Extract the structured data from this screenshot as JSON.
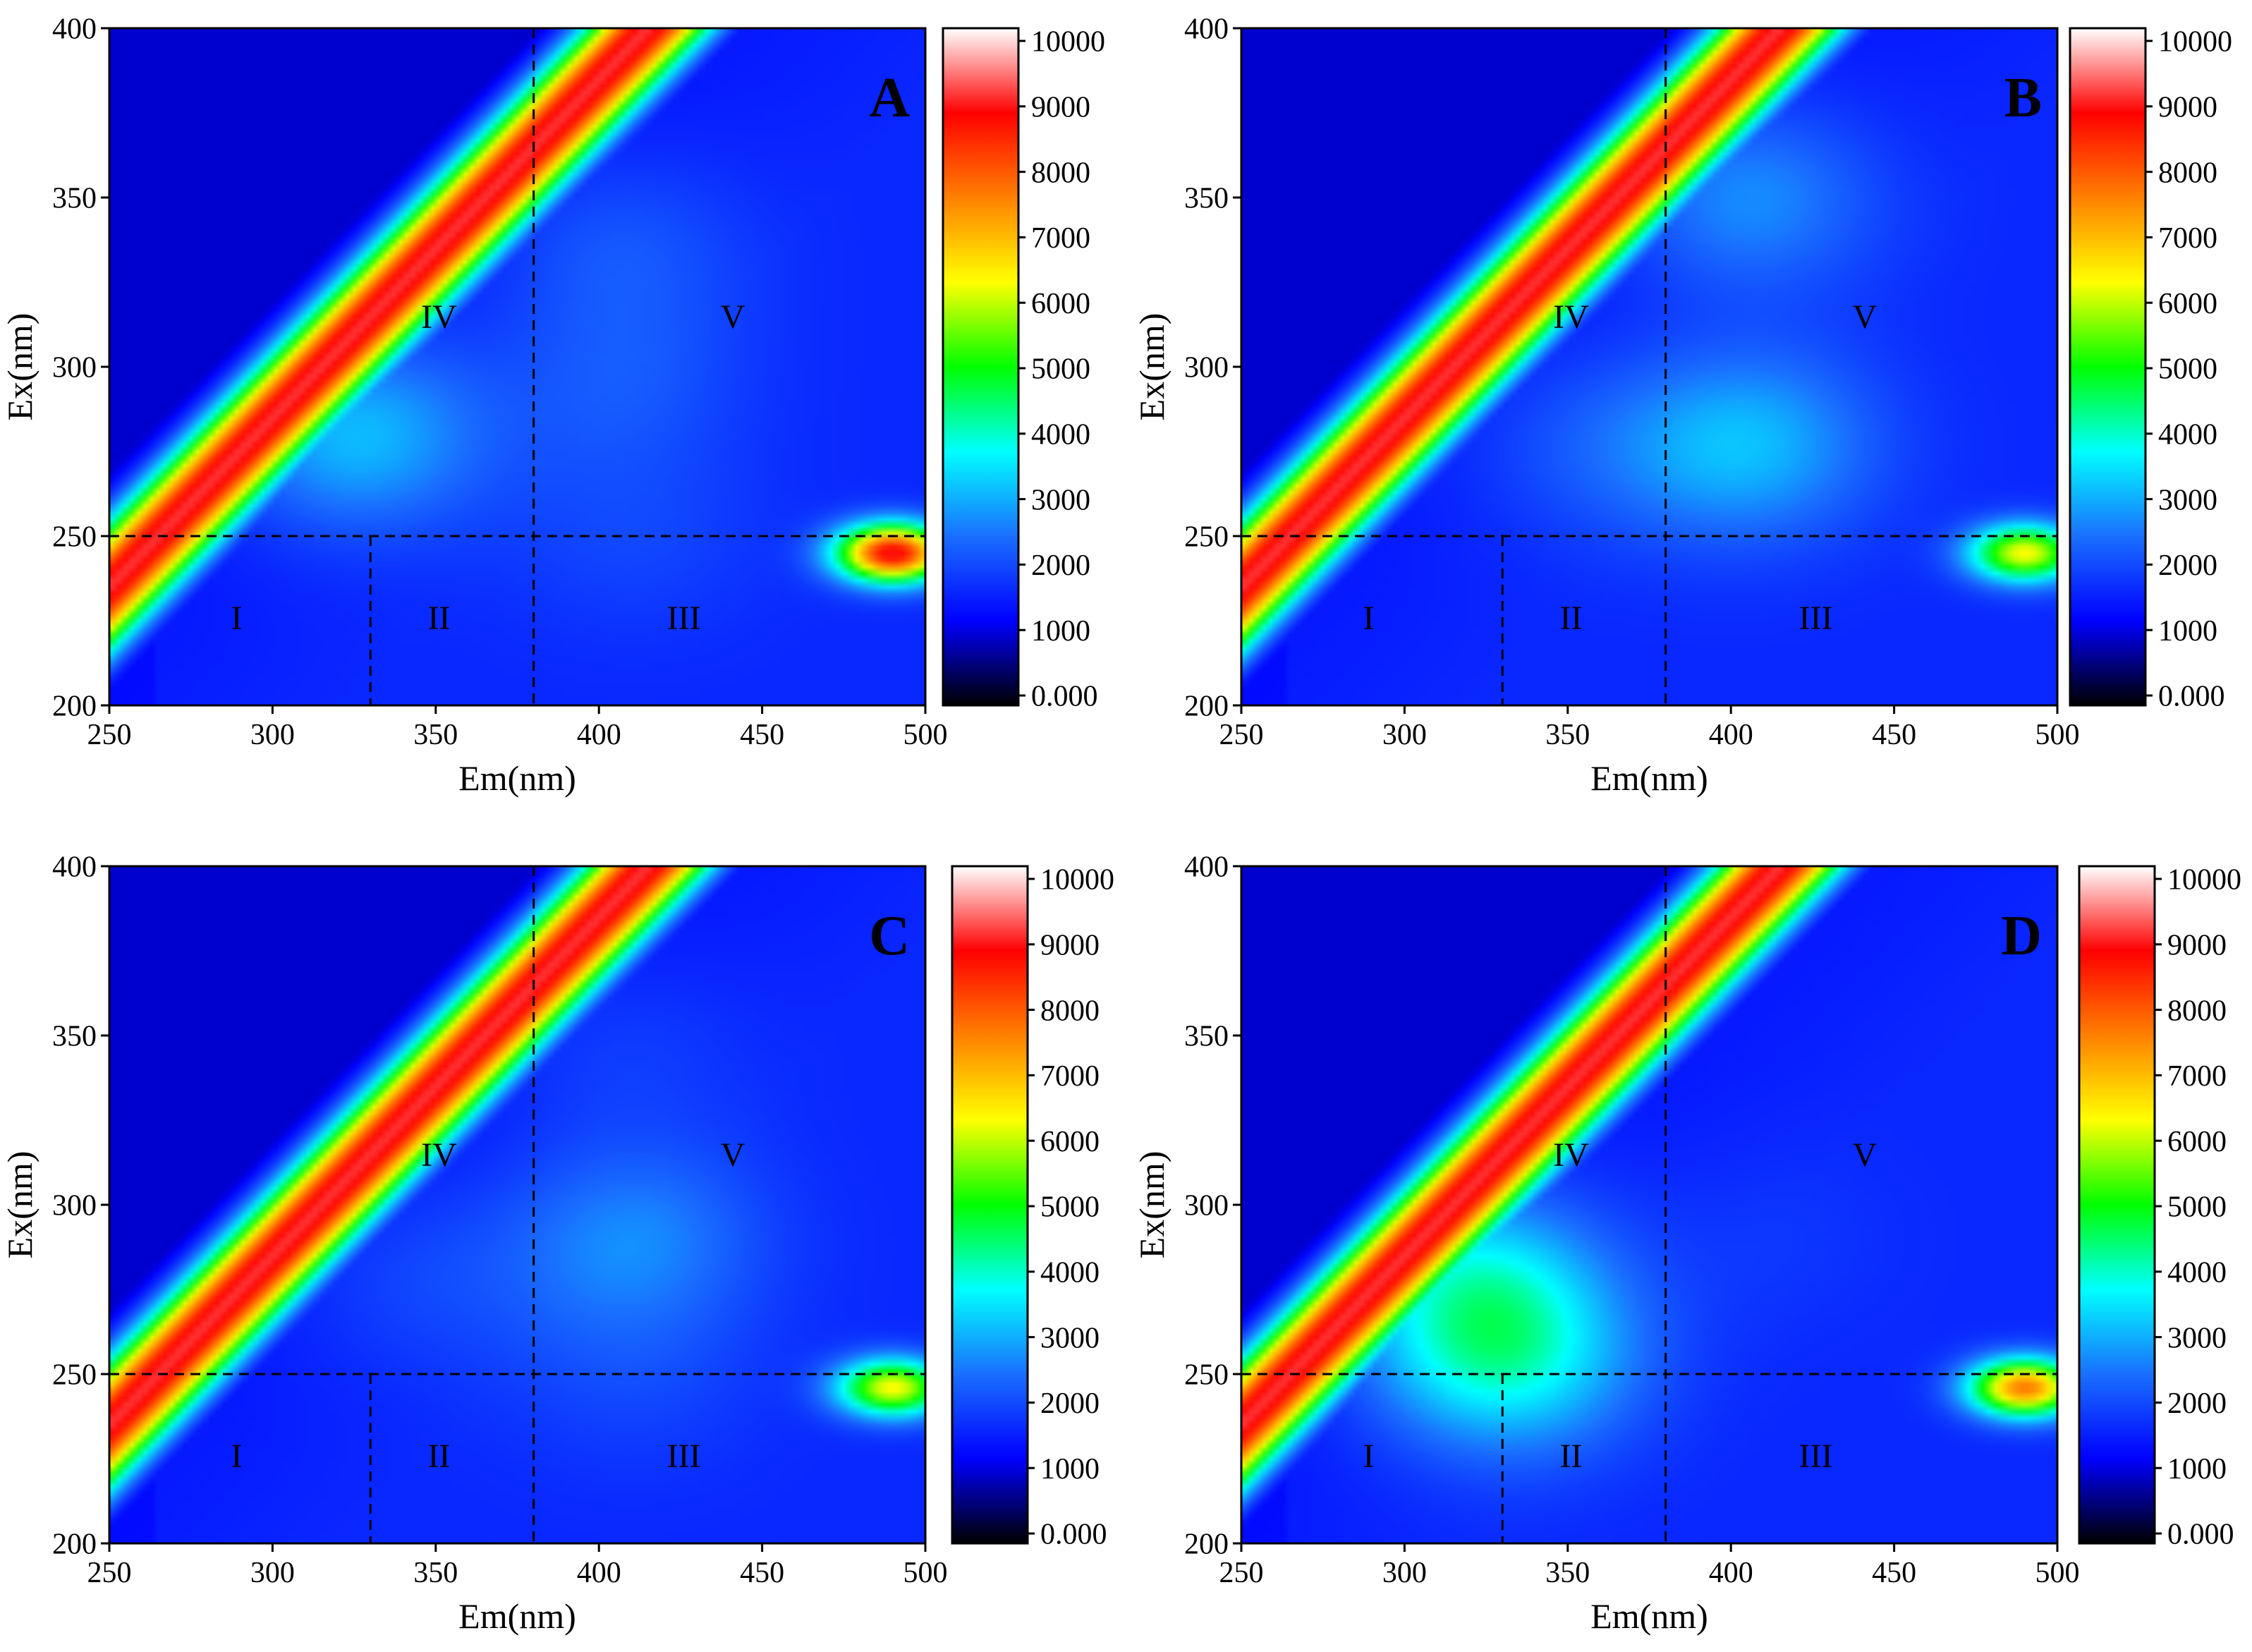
{
  "figure": {
    "background": "#ffffff"
  },
  "colorscale": {
    "stops": [
      "#000000",
      "#0000ff",
      "#1a6fff",
      "#00ffff",
      "#00ff00",
      "#ffff00",
      "#ff8000",
      "#ff0000",
      "#ffffff"
    ],
    "tick_labels": [
      "0.000",
      "1000",
      "2000",
      "3000",
      "4000",
      "5000",
      "6000",
      "7000",
      "8000",
      "9000",
      "10000"
    ]
  },
  "chart_data": [
    {
      "type": "heatmap",
      "panel_label": "A",
      "xlabel": "Em(nm)",
      "ylabel": "Ex(nm)",
      "xlim": [
        250,
        500
      ],
      "ylim": [
        200,
        400
      ],
      "x_ticks": [
        "250",
        "300",
        "350",
        "400",
        "450",
        "500"
      ],
      "y_ticks": [
        "200",
        "250",
        "300",
        "350",
        "400"
      ],
      "zlim": [
        0,
        10000
      ],
      "region_labels": [
        "I",
        "II",
        "III",
        "IV",
        "V"
      ],
      "region_boundaries": {
        "ex_line": 250,
        "em_lines": [
          330,
          380
        ]
      },
      "features": [
        {
          "kind": "rayleigh_scatter_band",
          "intensity": 10000
        },
        {
          "kind": "peak",
          "em": 325,
          "ex": 280,
          "intensity": 3000
        },
        {
          "kind": "peak",
          "em": 405,
          "ex": 335,
          "intensity": 1800
        },
        {
          "kind": "peak",
          "em": 405,
          "ex": 295,
          "intensity": 1700
        },
        {
          "kind": "peak",
          "em": 410,
          "ex": 250,
          "intensity": 1500
        },
        {
          "kind": "peak",
          "em": 490,
          "ex": 245,
          "intensity": 9500
        }
      ]
    },
    {
      "type": "heatmap",
      "panel_label": "B",
      "xlabel": "Em(nm)",
      "ylabel": "Ex(nm)",
      "xlim": [
        250,
        500
      ],
      "ylim": [
        200,
        400
      ],
      "x_ticks": [
        "250",
        "300",
        "350",
        "400",
        "450",
        "500"
      ],
      "y_ticks": [
        "200",
        "250",
        "300",
        "350",
        "400"
      ],
      "zlim": [
        0,
        10000
      ],
      "region_labels": [
        "I",
        "II",
        "III",
        "IV",
        "V"
      ],
      "region_boundaries": {
        "ex_line": 250,
        "em_lines": [
          330,
          380
        ]
      },
      "features": [
        {
          "kind": "rayleigh_scatter_band",
          "intensity": 10000
        },
        {
          "kind": "peak",
          "em": 405,
          "ex": 350,
          "intensity": 2500
        },
        {
          "kind": "peak",
          "em": 405,
          "ex": 277,
          "intensity": 2800
        },
        {
          "kind": "peak",
          "em": 355,
          "ex": 277,
          "intensity": 1700
        },
        {
          "kind": "peak",
          "em": 490,
          "ex": 245,
          "intensity": 6500
        }
      ]
    },
    {
      "type": "heatmap",
      "panel_label": "C",
      "xlabel": "Em(nm)",
      "ylabel": "Ex(nm)",
      "xlim": [
        250,
        500
      ],
      "ylim": [
        200,
        400
      ],
      "x_ticks": [
        "250",
        "300",
        "350",
        "400",
        "450",
        "500"
      ],
      "y_ticks": [
        "200",
        "250",
        "300",
        "350",
        "400"
      ],
      "zlim": [
        0,
        10000
      ],
      "region_labels": [
        "I",
        "II",
        "III",
        "IV",
        "V"
      ],
      "region_boundaries": {
        "ex_line": 250,
        "em_lines": [
          330,
          380
        ]
      },
      "features": [
        {
          "kind": "rayleigh_scatter_band",
          "intensity": 10000
        },
        {
          "kind": "peak",
          "em": 410,
          "ex": 290,
          "intensity": 2300
        },
        {
          "kind": "peak",
          "em": 405,
          "ex": 345,
          "intensity": 1500
        },
        {
          "kind": "peak",
          "em": 345,
          "ex": 278,
          "intensity": 1600
        },
        {
          "kind": "peak",
          "em": 410,
          "ex": 250,
          "intensity": 1500
        },
        {
          "kind": "peak",
          "em": 490,
          "ex": 246,
          "intensity": 6500
        }
      ]
    },
    {
      "type": "heatmap",
      "panel_label": "D",
      "xlabel": "Em(nm)",
      "ylabel": "Ex(nm)",
      "xlim": [
        250,
        500
      ],
      "ylim": [
        200,
        400
      ],
      "x_ticks": [
        "250",
        "300",
        "350",
        "400",
        "450",
        "500"
      ],
      "y_ticks": [
        "200",
        "250",
        "300",
        "350",
        "400"
      ],
      "zlim": [
        0,
        10000
      ],
      "region_labels": [
        "I",
        "II",
        "III",
        "IV",
        "V"
      ],
      "region_boundaries": {
        "ex_line": 250,
        "em_lines": [
          330,
          380
        ]
      },
      "features": [
        {
          "kind": "rayleigh_scatter_band",
          "intensity": 10000
        },
        {
          "kind": "peak",
          "em": 330,
          "ex": 255,
          "intensity": 3600
        },
        {
          "kind": "peak",
          "em": 320,
          "ex": 280,
          "intensity": 3000
        },
        {
          "kind": "peak",
          "em": 410,
          "ex": 290,
          "intensity": 1300
        },
        {
          "kind": "peak",
          "em": 490,
          "ex": 246,
          "intensity": 8000
        }
      ]
    }
  ]
}
